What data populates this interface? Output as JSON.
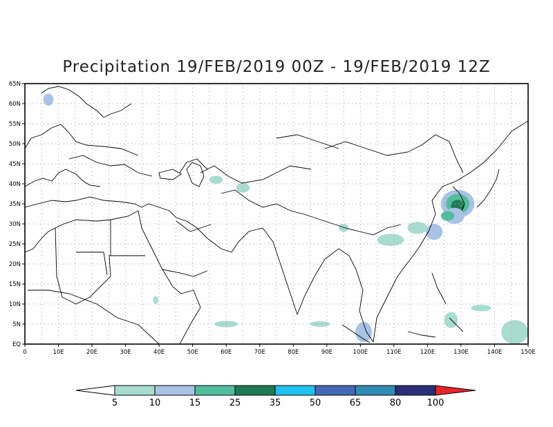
{
  "title": "Precipitation 19/FEB/2019 00Z - 19/FEB/2019 12Z",
  "lon_labels": [
    "0",
    "10E",
    "20E",
    "30E",
    "40E",
    "50E",
    "60E",
    "70E",
    "80E",
    "90E",
    "100E",
    "110E",
    "120E",
    "130E",
    "140E",
    "150E"
  ],
  "lat_labels": [
    "EQ",
    "5N",
    "10N",
    "15N",
    "20N",
    "25N",
    "30N",
    "35N",
    "40N",
    "45N",
    "50N",
    "55N",
    "60N",
    "65N"
  ],
  "extent": {
    "lon": [
      0,
      150
    ],
    "lat": [
      0,
      65
    ]
  },
  "colorbar": {
    "labels": [
      "5",
      "10",
      "15",
      "25",
      "35",
      "50",
      "65",
      "80",
      "100"
    ],
    "colors": [
      "#ffffff",
      "#a8dccf",
      "#a9c3e6",
      "#52bd9d",
      "#1e7a54",
      "#22c2f0",
      "#4668b8",
      "#2f8db5",
      "#2d2e78",
      "#e8232a"
    ]
  },
  "precip_areas": [
    {
      "lon": 129,
      "lat": 35,
      "rlon": 5,
      "rlat": 3.5,
      "level": 2
    },
    {
      "lon": 129,
      "lat": 35,
      "rlon": 3.5,
      "rlat": 2.5,
      "level": 3
    },
    {
      "lon": 129,
      "lat": 34.5,
      "rlon": 2,
      "rlat": 1.5,
      "level": 4
    },
    {
      "lon": 128,
      "lat": 32,
      "rlon": 3,
      "rlat": 2,
      "level": 2
    },
    {
      "lon": 126,
      "lat": 32,
      "rlon": 2,
      "rlat": 1.2,
      "level": 3
    },
    {
      "lon": 122,
      "lat": 28,
      "rlon": 2.5,
      "rlat": 2,
      "level": 2
    },
    {
      "lon": 117,
      "lat": 29,
      "rlon": 3,
      "rlat": 1.5,
      "level": 1
    },
    {
      "lon": 109,
      "lat": 26,
      "rlon": 4,
      "rlat": 1.5,
      "level": 1
    },
    {
      "lon": 95,
      "lat": 29,
      "rlon": 1.5,
      "rlat": 1,
      "level": 1
    },
    {
      "lon": 65,
      "lat": 39,
      "rlon": 2,
      "rlat": 1.2,
      "level": 1
    },
    {
      "lon": 57,
      "lat": 41,
      "rlon": 2,
      "rlat": 1,
      "level": 1
    },
    {
      "lon": 60,
      "lat": 5,
      "rlon": 3.5,
      "rlat": 0.8,
      "level": 1
    },
    {
      "lon": 88,
      "lat": 5,
      "rlon": 3,
      "rlat": 0.7,
      "level": 1
    },
    {
      "lon": 101,
      "lat": 3,
      "rlon": 2.5,
      "rlat": 2.5,
      "level": 2
    },
    {
      "lon": 127,
      "lat": 6,
      "rlon": 2,
      "rlat": 2,
      "level": 1
    },
    {
      "lon": 146,
      "lat": 3,
      "rlon": 4,
      "rlat": 3,
      "level": 1
    },
    {
      "lon": 136,
      "lat": 9,
      "rlon": 3,
      "rlat": 0.8,
      "level": 1
    },
    {
      "lon": 7,
      "lat": 61,
      "rlon": 1.5,
      "rlat": 1.5,
      "level": 2
    },
    {
      "lon": 39,
      "lat": 11,
      "rlon": 0.8,
      "rlat": 1,
      "level": 1
    }
  ]
}
